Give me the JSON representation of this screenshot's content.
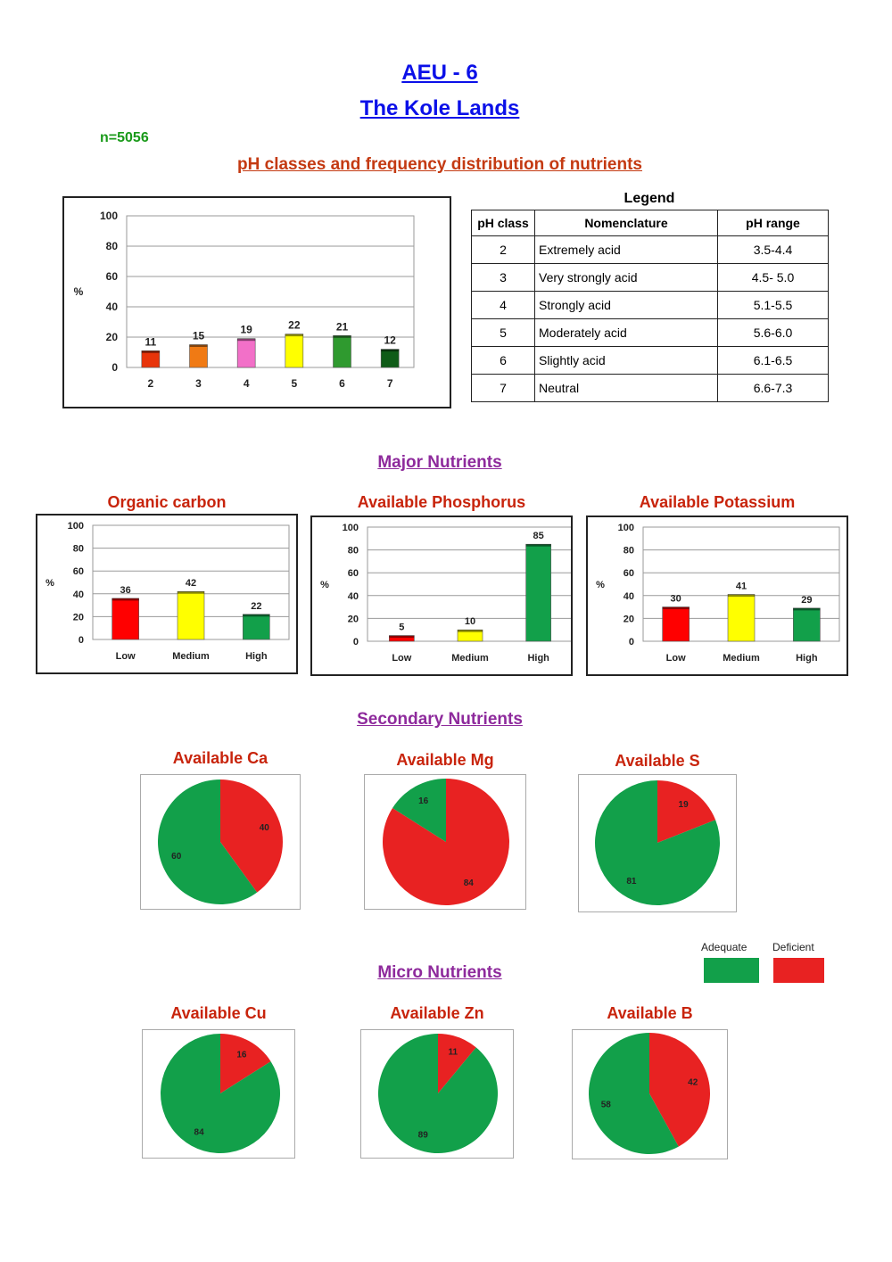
{
  "header": {
    "title": "AEU - 6",
    "subtitle": "The Kole Lands",
    "n_label": "n=5056",
    "ph_section_title": "pH classes and frequency distribution of nutrients",
    "major_title": "Major Nutrients",
    "secondary_title": "Secondary Nutrients",
    "micro_title": "Micro Nutrients"
  },
  "legend": {
    "title": "Legend",
    "headers": [
      "pH class",
      "Nomenclature",
      "pH range"
    ],
    "rows": [
      [
        "2",
        "Extremely acid",
        "3.5-4.4"
      ],
      [
        "3",
        "Very strongly acid",
        "4.5- 5.0"
      ],
      [
        "4",
        "Strongly acid",
        "5.1-5.5"
      ],
      [
        "5",
        "Moderately acid",
        "5.6-6.0"
      ],
      [
        "6",
        "Slightly acid",
        "6.1-6.5"
      ],
      [
        "7",
        "Neutral",
        "6.6-7.3"
      ]
    ]
  },
  "status_legend": {
    "adequate_label": "Adequate",
    "deficient_label": "Deficient",
    "adequate_color": "#12a04a",
    "deficient_color": "#e82222"
  },
  "chart_data": [
    {
      "id": "ph",
      "type": "bar",
      "title": "",
      "ylabel": "%",
      "categories": [
        "2",
        "3",
        "4",
        "5",
        "6",
        "7"
      ],
      "values": [
        11,
        15,
        19,
        22,
        21,
        12
      ],
      "colors": [
        "#e8340a",
        "#f07a14",
        "#f270c8",
        "#ffff00",
        "#2f9a2f",
        "#0f5c18"
      ],
      "ylim": [
        0,
        100
      ],
      "yticks": [
        0,
        20,
        40,
        60,
        80,
        100
      ],
      "grid": true
    },
    {
      "id": "oc",
      "type": "bar",
      "title": "Organic carbon",
      "ylabel": "%",
      "categories": [
        "Low",
        "Medium",
        "High"
      ],
      "values": [
        36,
        42,
        22
      ],
      "colors": [
        "#ff0000",
        "#ffff00",
        "#12a04a"
      ],
      "ylim": [
        0,
        100
      ],
      "yticks": [
        0,
        20,
        40,
        60,
        80,
        100
      ],
      "grid": true
    },
    {
      "id": "p",
      "type": "bar",
      "title": "Available Phosphorus",
      "ylabel": "%",
      "categories": [
        "Low",
        "Medium",
        "High"
      ],
      "values": [
        5,
        10,
        85
      ],
      "colors": [
        "#ff0000",
        "#ffff00",
        "#12a04a"
      ],
      "ylim": [
        0,
        100
      ],
      "yticks": [
        0,
        20,
        40,
        60,
        80,
        100
      ],
      "grid": true
    },
    {
      "id": "k",
      "type": "bar",
      "title": "Available Potassium",
      "ylabel": "%",
      "categories": [
        "Low",
        "Medium",
        "High"
      ],
      "values": [
        30,
        41,
        29
      ],
      "colors": [
        "#ff0000",
        "#ffff00",
        "#12a04a"
      ],
      "ylim": [
        0,
        100
      ],
      "yticks": [
        0,
        20,
        40,
        60,
        80,
        100
      ],
      "grid": true
    },
    {
      "id": "ca",
      "type": "pie",
      "title": "Available Ca",
      "deficient": 40,
      "adequate": 60
    },
    {
      "id": "mg",
      "type": "pie",
      "title": "Available Mg",
      "deficient": 84,
      "adequate": 16
    },
    {
      "id": "s",
      "type": "pie",
      "title": "Available S",
      "deficient": 19,
      "adequate": 81
    },
    {
      "id": "cu",
      "type": "pie",
      "title": "Available Cu",
      "deficient": 16,
      "adequate": 84
    },
    {
      "id": "zn",
      "type": "pie",
      "title": "Available Zn",
      "deficient": 11,
      "adequate": 89
    },
    {
      "id": "b",
      "type": "pie",
      "title": "Available B",
      "deficient": 42,
      "adequate": 58
    }
  ]
}
